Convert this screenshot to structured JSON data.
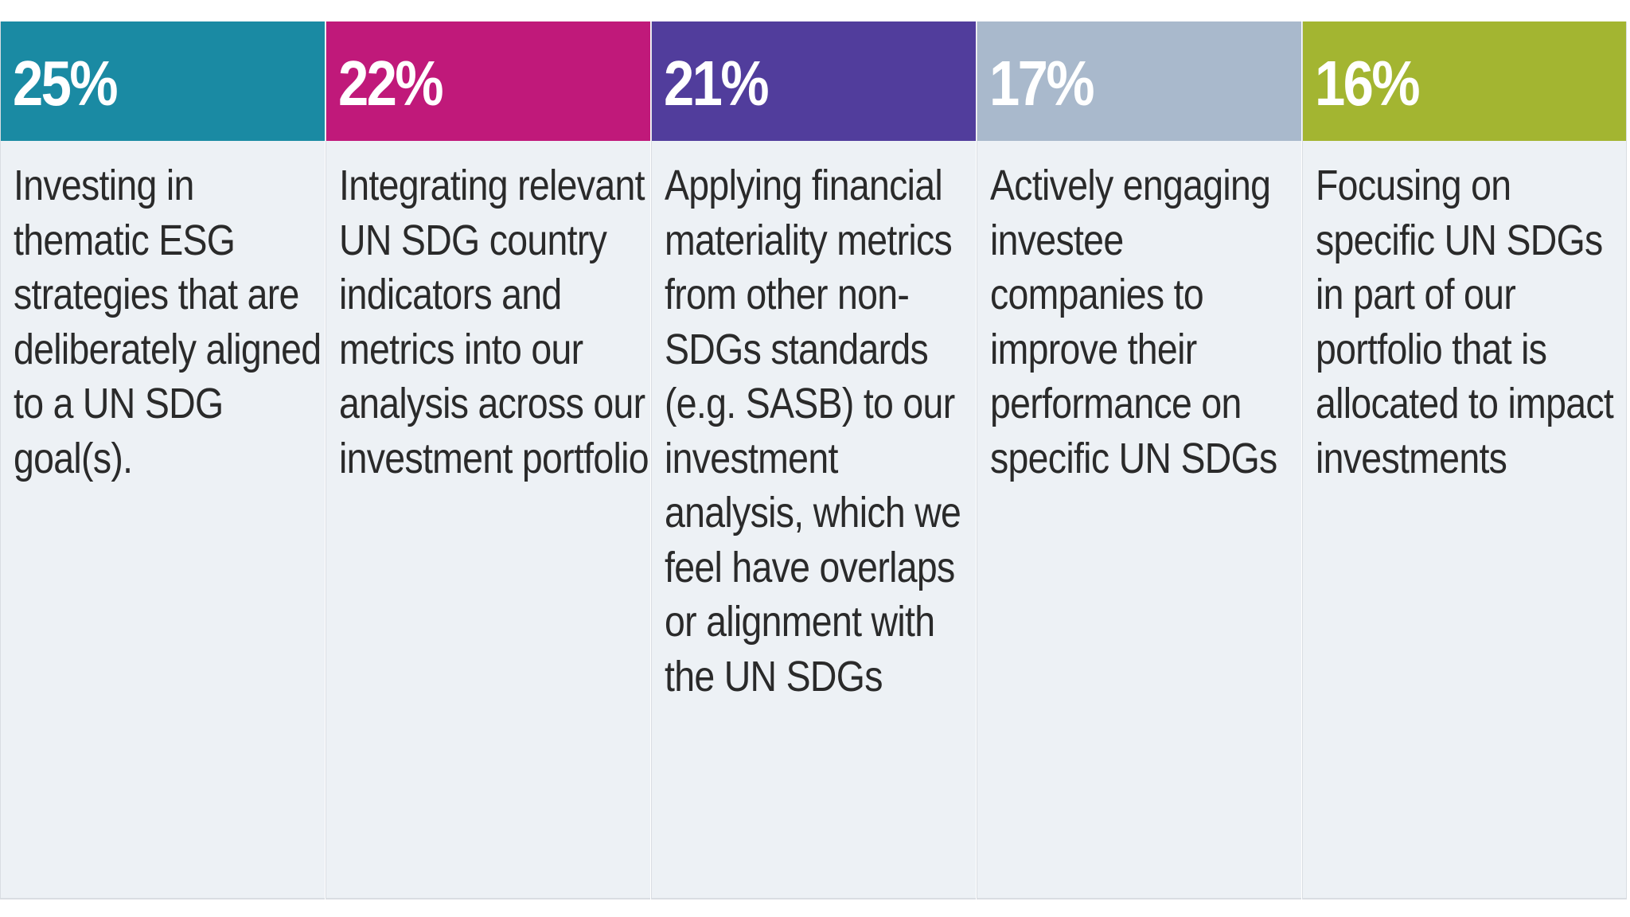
{
  "chart_data": {
    "type": "table",
    "title": "",
    "columns": [
      {
        "value": 25,
        "label": "25%",
        "color": "#1a8aa3",
        "description": "Investing in thematic ESG strategies that are deliberately aligned to a UN SDG goal(s)."
      },
      {
        "value": 22,
        "label": "22%",
        "color": "#c0197a",
        "description": "Integrating relevant UN SDG country indicators and metrics into our analysis across our investment portfolio"
      },
      {
        "value": 21,
        "label": "21%",
        "color": "#513d9c",
        "description": "Applying financial materiality metrics from other non-SDGs standards (e.g. SASB) to our investment analysis, which we feel have overlaps or alignment with the UN SDGs"
      },
      {
        "value": 17,
        "label": "17%",
        "color": "#a9b9cc",
        "description": "Actively engaging investee companies to improve their performance on specific UN SDGs"
      },
      {
        "value": 16,
        "label": "16%",
        "color": "#a3b531",
        "description": "Focusing on specific UN SDGs in part of our portfolio that is allocated to impact investments"
      }
    ]
  }
}
